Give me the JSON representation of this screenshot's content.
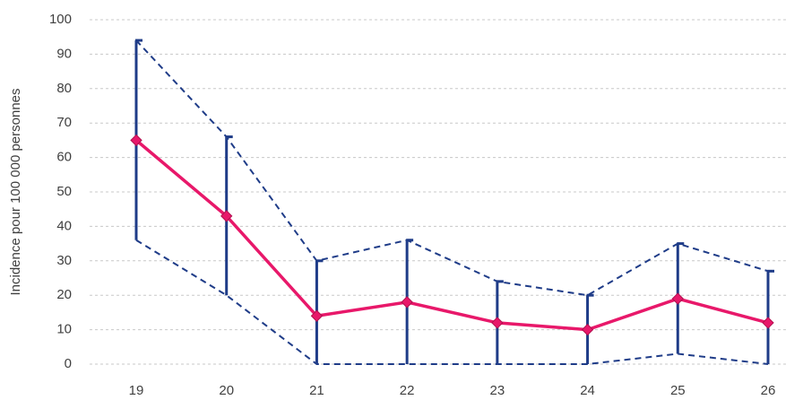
{
  "chart_data": {
    "type": "line",
    "y_label": "Incidence pour 100 000 personnes",
    "categories": [
      "19",
      "20",
      "21",
      "22",
      "23",
      "24",
      "25",
      "26"
    ],
    "values": [
      65,
      43,
      14,
      18,
      12,
      10,
      19,
      12
    ],
    "lower": [
      36,
      20,
      0,
      0,
      0,
      0,
      3,
      0
    ],
    "upper": [
      94,
      66,
      30,
      36,
      24,
      20,
      35,
      27
    ],
    "color": "#e8186a",
    "interval_color": "#1f3c88",
    "ylim": [
      0,
      100
    ],
    "yticks": [
      0,
      10,
      20,
      30,
      40,
      50,
      60,
      70,
      80,
      90,
      100
    ],
    "grid": true
  }
}
